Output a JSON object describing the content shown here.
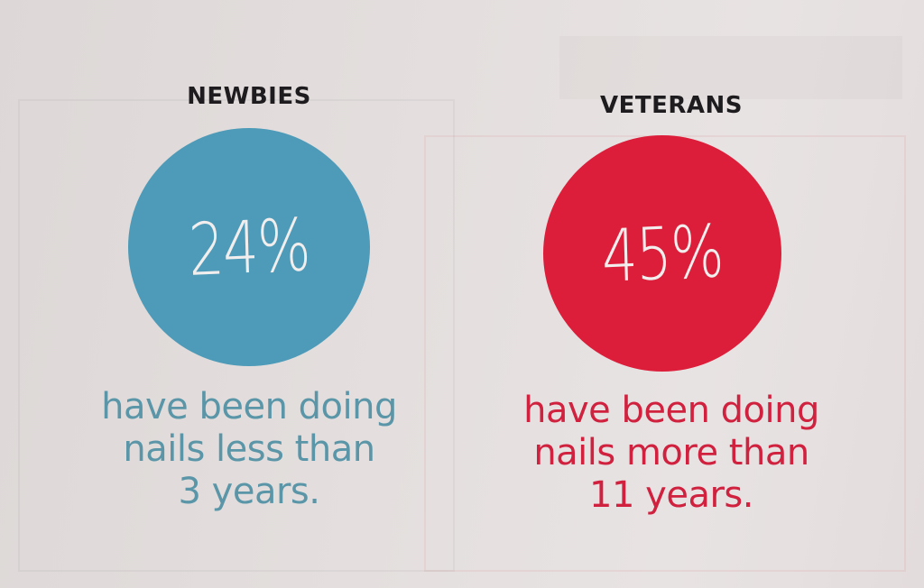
{
  "stats": [
    {
      "label": "NEWBIES",
      "value": "24%",
      "color": "#4d9bb8",
      "text_color": "#5a96a8",
      "description": [
        "have been doing",
        "nails less than",
        "3 years."
      ]
    },
    {
      "label": "VETERANS",
      "value": "45%",
      "color": "#dc1e3a",
      "text_color": "#d0213f",
      "description": [
        "have been doing",
        "nails more than",
        "11 years."
      ]
    }
  ]
}
